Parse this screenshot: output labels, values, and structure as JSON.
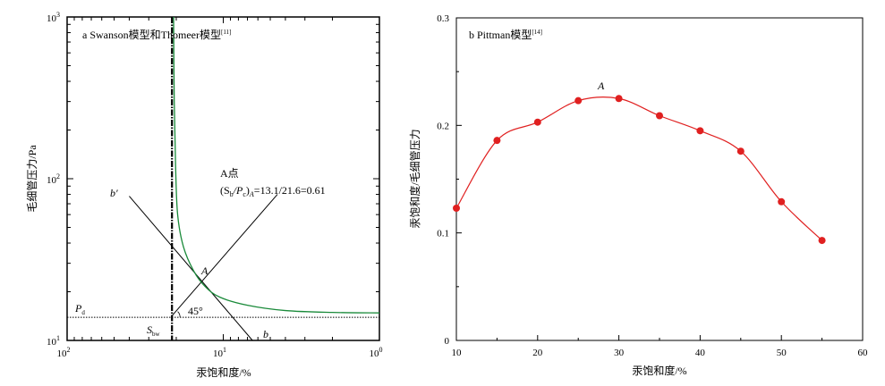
{
  "chart_data": [
    {
      "id": "a",
      "type": "line",
      "title": "a Swanson模型和Thomeer模型",
      "title_ref": "[11]",
      "xlabel": "汞饱和度/%",
      "ylabel": "毛细管压力/Pa",
      "x_scale": "log-reversed",
      "y_scale": "log",
      "xlim": [
        100,
        1
      ],
      "ylim": [
        10,
        1000
      ],
      "x_ticks": [
        {
          "base": "10",
          "exp": "2"
        },
        {
          "base": "10",
          "exp": "1"
        },
        {
          "base": "10",
          "exp": "0"
        }
      ],
      "y_ticks": [
        {
          "base": "10",
          "exp": "3"
        },
        {
          "base": "10",
          "exp": "2"
        },
        {
          "base": "10",
          "exp": "1"
        }
      ],
      "series": [
        {
          "color": "#1a8a3a",
          "values": [
            [
              20.8,
              1000
            ],
            [
              20.6,
              300
            ],
            [
              20.2,
              120
            ],
            [
              19.6,
              60
            ],
            [
              18.0,
              38
            ],
            [
              15.5,
              27
            ],
            [
              13.1,
              21.6
            ],
            [
              10.5,
              18.5
            ],
            [
              7,
              16.5
            ],
            [
              4,
              15.3
            ],
            [
              2,
              14.9
            ],
            [
              1,
              14.8
            ]
          ]
        }
      ],
      "vertical_line": {
        "x": 21.3
      },
      "pd_line": {
        "y": 13.9
      },
      "line_b_prime": [
        [
          40,
          78
        ],
        [
          6.5,
          10
        ]
      ],
      "line_45": [
        [
          21.3,
          14.2
        ],
        [
          4.5,
          80
        ]
      ],
      "annotations": {
        "point_A": "A",
        "A_point_label": "A点",
        "formula_open": "(S",
        "formula_sub1": "b",
        "formula_mid": "/P",
        "formula_sub2": "c",
        "formula_close": ")",
        "formula_sub3": "A",
        "formula_value": "=13.1/21.6=0.61",
        "b_prime": "b′",
        "b": "b",
        "angle": "45°",
        "pd_main": "P",
        "pd_sub": "d",
        "sbr_main": "S",
        "sbr_sub": "bw"
      }
    },
    {
      "id": "b",
      "type": "line",
      "title": "b Pittman模型",
      "title_ref": "[14]",
      "xlabel": "汞饱和度/%",
      "ylabel": "汞饱和度/毛细管压力",
      "xlim": [
        10,
        60
      ],
      "ylim": [
        0,
        0.3
      ],
      "x_ticks": [
        10,
        20,
        30,
        40,
        50,
        60
      ],
      "y_ticks": [
        0,
        0.1,
        0.2,
        0.3
      ],
      "y_tick_labels": [
        "0",
        "0.1",
        "0.2",
        "0.3"
      ],
      "point_label": "A",
      "series": [
        {
          "color": "#e02020",
          "x": [
            10,
            15,
            20,
            25,
            30,
            35,
            40,
            45,
            50,
            55
          ],
          "values": [
            0.123,
            0.186,
            0.203,
            0.223,
            0.225,
            0.209,
            0.195,
            0.176,
            0.129,
            0.093
          ]
        }
      ]
    }
  ]
}
